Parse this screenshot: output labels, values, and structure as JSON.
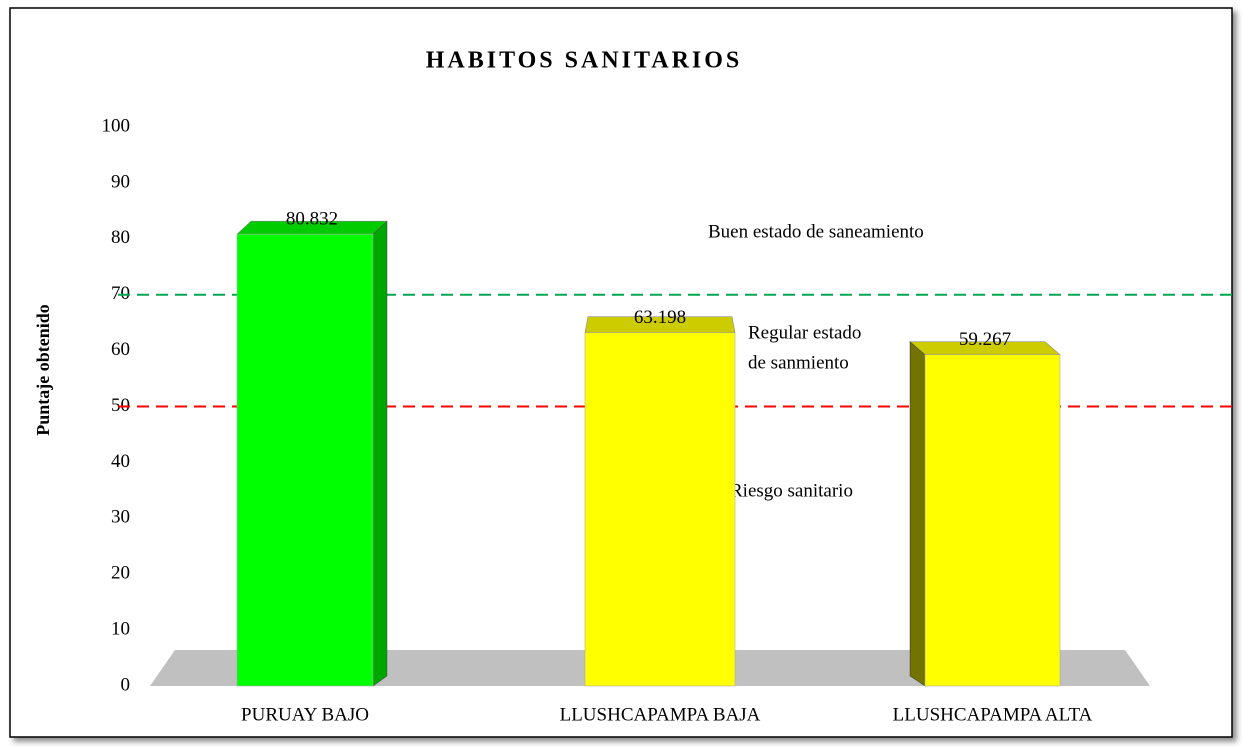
{
  "chart_data": {
    "type": "bar3d",
    "title": "HABITOS SANITARIOS",
    "y_label": "Puntaje obtenido",
    "categories": [
      "PURUAY BAJO",
      "LLUSHCAPAMPA BAJA",
      "LLUSHCAPAMPA ALTA"
    ],
    "values": [
      80.832,
      63.198,
      59.267
    ],
    "colors": [
      "#00ff00",
      "#ffff00",
      "#ffff00"
    ],
    "ylim": [
      0,
      100
    ],
    "yticks": [
      0,
      10,
      20,
      30,
      40,
      50,
      60,
      70,
      80,
      90,
      100
    ],
    "reference_lines": [
      {
        "value": 70,
        "color": "#00a650"
      },
      {
        "value": 50,
        "color": "#ff0000"
      }
    ],
    "annotations": [
      "Buen estado de saneamiento",
      "Regular estado",
      "de sanmiento",
      "Riesgo sanitario"
    ]
  }
}
